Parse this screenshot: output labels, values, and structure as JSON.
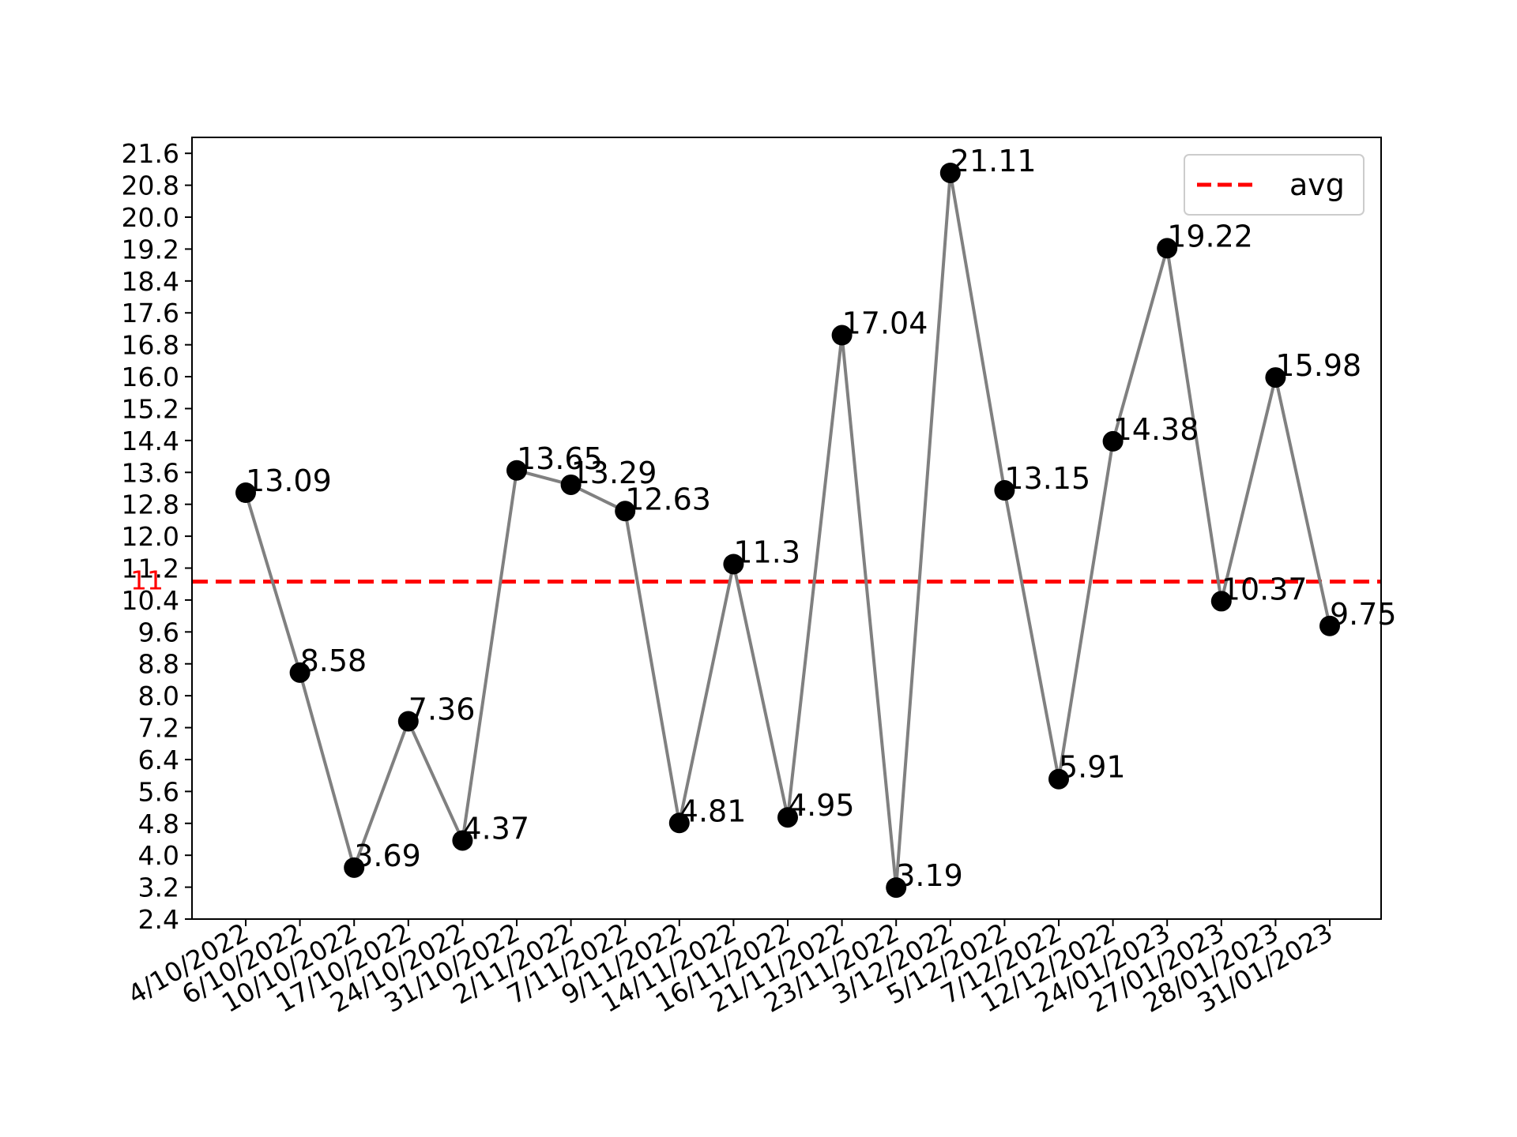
{
  "chart_data": {
    "type": "line",
    "categories": [
      "4/10/2022",
      "6/10/2022",
      "10/10/2022",
      "17/10/2022",
      "24/10/2022",
      "31/10/2022",
      "2/11/2022",
      "7/11/2022",
      "9/11/2022",
      "14/11/2022",
      "16/11/2022",
      "21/11/2022",
      "23/11/2022",
      "3/12/2022",
      "5/12/2022",
      "7/12/2022",
      "12/12/2022",
      "24/01/2023",
      "27/01/2023",
      "28/01/2023",
      "31/01/2023"
    ],
    "values": [
      13.09,
      8.58,
      3.69,
      7.36,
      4.37,
      13.65,
      13.29,
      12.63,
      4.81,
      11.3,
      4.95,
      17.04,
      3.19,
      21.11,
      13.15,
      5.91,
      14.38,
      19.22,
      10.37,
      15.98,
      9.75
    ],
    "data_labels": [
      "13.09",
      "8.58",
      "3.69",
      "7.36",
      "4.37",
      "13.65",
      "13.29",
      "12.63",
      "4.81",
      "11.3",
      "4.95",
      "17.04",
      "3.19",
      "21.11",
      "13.15",
      "5.91",
      "14.38",
      "19.22",
      "10.37",
      "15.98",
      "9.75"
    ],
    "yticks": [
      "2.4",
      "3.2",
      "4.0",
      "4.8",
      "5.6",
      "6.4",
      "7.2",
      "8.0",
      "8.8",
      "9.6",
      "10.4",
      "11.2",
      "12.0",
      "12.8",
      "13.6",
      "14.4",
      "15.2",
      "16.0",
      "16.8",
      "17.6",
      "18.4",
      "19.2",
      "20.0",
      "20.8",
      "21.6"
    ],
    "ylim": [
      2.4,
      22.0
    ],
    "average": 10.86,
    "average_label": "11",
    "legend": [
      {
        "label": "avg",
        "color": "#ff0000",
        "style": "dashed"
      }
    ],
    "legend_position": "upper-right",
    "line_color": "#808080",
    "marker_color": "#000000",
    "average_color": "#ff0000",
    "grid": false,
    "title": "",
    "xlabel": "",
    "ylabel": ""
  }
}
